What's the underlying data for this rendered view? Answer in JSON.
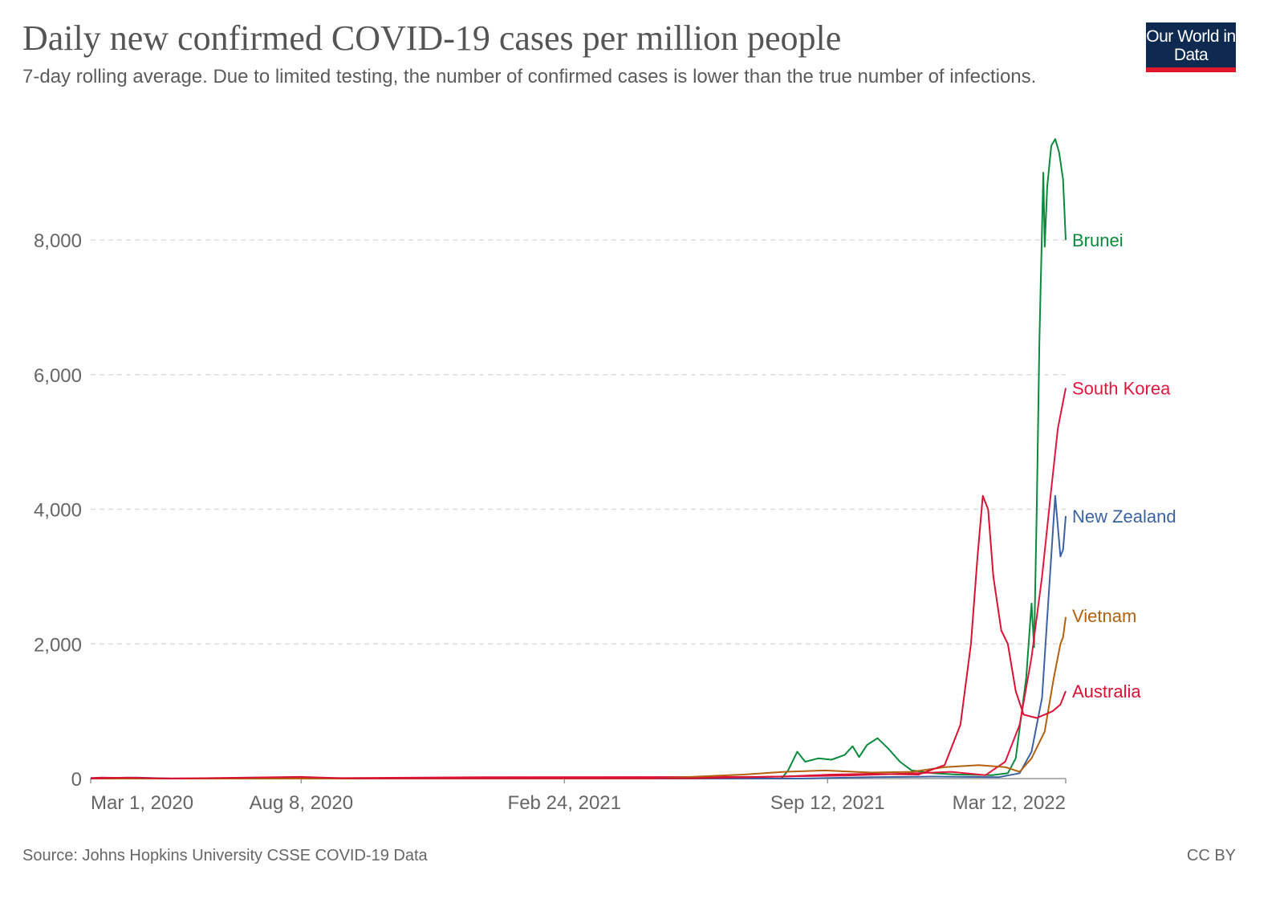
{
  "title": "Daily new confirmed COVID-19 cases per million people",
  "subtitle": "7-day rolling average. Due to limited testing, the number of confirmed cases is lower than the true number of infections.",
  "logo": "Our World in Data",
  "source": "Source: Johns Hopkins University CSSE COVID-19 Data",
  "license": "CC BY",
  "chart_data": {
    "type": "line",
    "title": "Daily new confirmed COVID-19 cases per million people",
    "xlim": [
      "2020-03-01",
      "2022-03-12"
    ],
    "ylim": [
      0,
      9600
    ],
    "grid": true,
    "legend": "inline-right",
    "y_ticks": [
      0,
      2000,
      4000,
      6000,
      8000
    ],
    "y_tick_labels": [
      "0",
      "2,000",
      "4,000",
      "6,000",
      "8,000"
    ],
    "x_ticks": [
      "2020-03-01",
      "2020-08-08",
      "2021-02-24",
      "2021-09-12",
      "2022-03-12"
    ],
    "x_tick_labels": [
      "Mar 1, 2020",
      "Aug 8, 2020",
      "Feb 24, 2021",
      "Sep 12, 2021",
      "Mar 12, 2022"
    ],
    "series": [
      {
        "name": "Brunei",
        "color": "#0a8a3c",
        "points": [
          [
            "2020-03-01",
            0
          ],
          [
            "2020-03-20",
            10
          ],
          [
            "2020-04-15",
            0
          ],
          [
            "2021-08-08",
            0
          ],
          [
            "2021-08-13",
            120
          ],
          [
            "2021-08-20",
            400
          ],
          [
            "2021-08-26",
            250
          ],
          [
            "2021-09-05",
            300
          ],
          [
            "2021-09-15",
            280
          ],
          [
            "2021-09-25",
            350
          ],
          [
            "2021-10-01",
            480
          ],
          [
            "2021-10-06",
            320
          ],
          [
            "2021-10-12",
            500
          ],
          [
            "2021-10-20",
            600
          ],
          [
            "2021-10-28",
            450
          ],
          [
            "2021-11-06",
            250
          ],
          [
            "2021-11-15",
            120
          ],
          [
            "2021-12-01",
            80
          ],
          [
            "2021-12-20",
            60
          ],
          [
            "2022-01-15",
            50
          ],
          [
            "2022-01-27",
            80
          ],
          [
            "2022-02-02",
            300
          ],
          [
            "2022-02-10",
            1500
          ],
          [
            "2022-02-14",
            2600
          ],
          [
            "2022-02-16",
            1950
          ],
          [
            "2022-02-18",
            4000
          ],
          [
            "2022-02-20",
            6500
          ],
          [
            "2022-02-23",
            9000
          ],
          [
            "2022-02-24",
            7900
          ],
          [
            "2022-02-26",
            8800
          ],
          [
            "2022-03-01",
            9400
          ],
          [
            "2022-03-04",
            9500
          ],
          [
            "2022-03-07",
            9300
          ],
          [
            "2022-03-10",
            8900
          ],
          [
            "2022-03-12",
            8000
          ]
        ]
      },
      {
        "name": "South Korea",
        "color": "#e0163d",
        "points": [
          [
            "2020-03-01",
            10
          ],
          [
            "2020-03-10",
            15
          ],
          [
            "2020-04-10",
            2
          ],
          [
            "2020-08-25",
            6
          ],
          [
            "2020-12-25",
            20
          ],
          [
            "2021-07-20",
            25
          ],
          [
            "2021-09-25",
            45
          ],
          [
            "2021-11-20",
            80
          ],
          [
            "2021-12-15",
            100
          ],
          [
            "2022-01-10",
            50
          ],
          [
            "2022-01-25",
            250
          ],
          [
            "2022-02-05",
            800
          ],
          [
            "2022-02-14",
            1800
          ],
          [
            "2022-02-22",
            3000
          ],
          [
            "2022-03-01",
            4300
          ],
          [
            "2022-03-06",
            5200
          ],
          [
            "2022-03-09",
            5500
          ],
          [
            "2022-03-12",
            5800
          ]
        ]
      },
      {
        "name": "New Zealand",
        "color": "#3c62a3",
        "points": [
          [
            "2020-03-01",
            0
          ],
          [
            "2020-04-05",
            15
          ],
          [
            "2020-05-01",
            0
          ],
          [
            "2021-08-20",
            0
          ],
          [
            "2021-10-15",
            20
          ],
          [
            "2021-12-01",
            30
          ],
          [
            "2022-01-20",
            20
          ],
          [
            "2022-02-05",
            80
          ],
          [
            "2022-02-14",
            400
          ],
          [
            "2022-02-22",
            1200
          ],
          [
            "2022-02-28",
            3000
          ],
          [
            "2022-03-04",
            4200
          ],
          [
            "2022-03-08",
            3300
          ],
          [
            "2022-03-10",
            3400
          ],
          [
            "2022-03-12",
            3900
          ]
        ]
      },
      {
        "name": "Vietnam",
        "color": "#b3600f",
        "points": [
          [
            "2020-03-01",
            0
          ],
          [
            "2021-05-01",
            0
          ],
          [
            "2021-07-10",
            60
          ],
          [
            "2021-08-10",
            100
          ],
          [
            "2021-09-10",
            120
          ],
          [
            "2021-10-15",
            90
          ],
          [
            "2021-11-15",
            100
          ],
          [
            "2021-12-10",
            170
          ],
          [
            "2022-01-05",
            200
          ],
          [
            "2022-01-25",
            170
          ],
          [
            "2022-02-05",
            100
          ],
          [
            "2022-02-14",
            300
          ],
          [
            "2022-02-24",
            700
          ],
          [
            "2022-03-03",
            1500
          ],
          [
            "2022-03-08",
            2000
          ],
          [
            "2022-03-10",
            2100
          ],
          [
            "2022-03-12",
            2400
          ]
        ]
      },
      {
        "name": "Australia",
        "color": "#d81233",
        "points": [
          [
            "2020-03-01",
            0
          ],
          [
            "2020-03-28",
            15
          ],
          [
            "2020-05-01",
            0
          ],
          [
            "2020-08-08",
            25
          ],
          [
            "2020-09-10",
            5
          ],
          [
            "2021-06-01",
            5
          ],
          [
            "2021-08-10",
            30
          ],
          [
            "2021-09-15",
            60
          ],
          [
            "2021-10-15",
            70
          ],
          [
            "2021-11-20",
            60
          ],
          [
            "2021-12-10",
            200
          ],
          [
            "2021-12-22",
            800
          ],
          [
            "2021-12-30",
            2000
          ],
          [
            "2022-01-04",
            3300
          ],
          [
            "2022-01-08",
            4200
          ],
          [
            "2022-01-12",
            4000
          ],
          [
            "2022-01-16",
            3000
          ],
          [
            "2022-01-22",
            2200
          ],
          [
            "2022-01-27",
            2000
          ],
          [
            "2022-02-02",
            1300
          ],
          [
            "2022-02-08",
            950
          ],
          [
            "2022-02-18",
            900
          ],
          [
            "2022-02-24",
            950
          ],
          [
            "2022-03-02",
            1000
          ],
          [
            "2022-03-08",
            1100
          ],
          [
            "2022-03-12",
            1300
          ]
        ]
      }
    ]
  }
}
